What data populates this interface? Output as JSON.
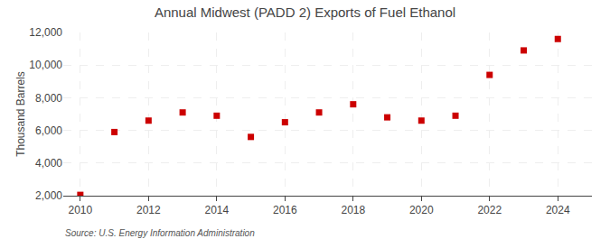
{
  "chart_data": {
    "type": "scatter",
    "title": "Annual Midwest (PADD 2) Exports of Fuel Ethanol",
    "ylabel": "Thousand Barrels",
    "annotations": [
      "Source: U.S. Energy Information Administration"
    ],
    "x": [
      2010,
      2011,
      2012,
      2013,
      2014,
      2015,
      2016,
      2017,
      2018,
      2019,
      2020,
      2021,
      2022,
      2023,
      2024
    ],
    "values": [
      2050,
      5900,
      6600,
      7100,
      6900,
      5600,
      6500,
      7100,
      7600,
      6800,
      6600,
      6900,
      9400,
      10900,
      11600
    ],
    "color": "#cc0000",
    "marker": "square",
    "xlim": [
      2009.5,
      2025.0
    ],
    "xticks": [
      2010,
      2012,
      2014,
      2016,
      2018,
      2020,
      2022,
      2024
    ],
    "ylim": [
      2000,
      12000
    ],
    "yticks": [
      {
        "value": 2000,
        "label": "2,000"
      },
      {
        "value": 4000,
        "label": "4,000"
      },
      {
        "value": 6000,
        "label": "6,000"
      },
      {
        "value": 8000,
        "label": "8,000"
      },
      {
        "value": 10000,
        "label": "10,000"
      },
      {
        "value": 12000,
        "label": "12,000"
      }
    ],
    "grid": true
  }
}
